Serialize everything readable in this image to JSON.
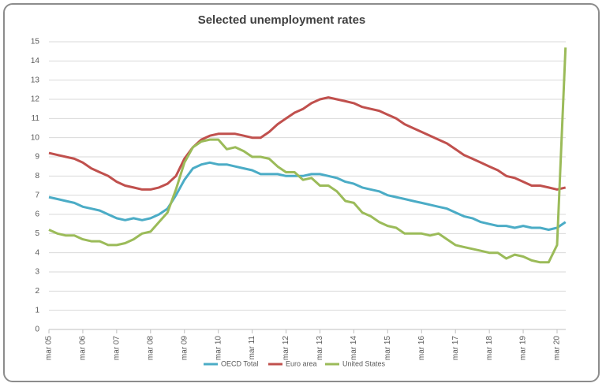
{
  "chart_data": {
    "type": "line",
    "title": "Selected unemployment rates",
    "categories": [
      "mar 05",
      null,
      null,
      null,
      "mar 06",
      null,
      null,
      null,
      "mar 07",
      null,
      null,
      null,
      "mar 08",
      null,
      null,
      null,
      "mar 09",
      null,
      null,
      null,
      "mar 10",
      null,
      null,
      null,
      "mar 11",
      null,
      null,
      null,
      "mar 12",
      null,
      null,
      null,
      "mar 13",
      null,
      null,
      null,
      "mar 14",
      null,
      null,
      null,
      "mar 15",
      null,
      null,
      null,
      "mar 16",
      null,
      null,
      null,
      "mar 17",
      null,
      null,
      null,
      "mar 18",
      null,
      null,
      null,
      "mar 19",
      null,
      null,
      null,
      "mar 20",
      null
    ],
    "series": [
      {
        "name": "OECD Total",
        "color": "#4bacc6",
        "values": [
          6.9,
          6.8,
          6.7,
          6.6,
          6.4,
          6.3,
          6.2,
          6.0,
          5.8,
          5.7,
          5.8,
          5.7,
          5.8,
          6.0,
          6.3,
          7.0,
          7.8,
          8.4,
          8.6,
          8.7,
          8.6,
          8.6,
          8.5,
          8.4,
          8.3,
          8.1,
          8.1,
          8.1,
          8.0,
          8.0,
          8.0,
          8.1,
          8.1,
          8.0,
          7.9,
          7.7,
          7.6,
          7.4,
          7.3,
          7.2,
          7.0,
          6.9,
          6.8,
          6.7,
          6.6,
          6.5,
          6.4,
          6.3,
          6.1,
          5.9,
          5.8,
          5.6,
          5.5,
          5.4,
          5.4,
          5.3,
          5.4,
          5.3,
          5.3,
          5.2,
          5.3,
          5.6
        ]
      },
      {
        "name": "Euro area",
        "color": "#c0504d",
        "values": [
          9.2,
          9.1,
          9.0,
          8.9,
          8.7,
          8.4,
          8.2,
          8.0,
          7.7,
          7.5,
          7.4,
          7.3,
          7.3,
          7.4,
          7.6,
          8.0,
          8.9,
          9.5,
          9.9,
          10.1,
          10.2,
          10.2,
          10.2,
          10.1,
          10.0,
          10.0,
          10.3,
          10.7,
          11.0,
          11.3,
          11.5,
          11.8,
          12.0,
          12.1,
          12.0,
          11.9,
          11.8,
          11.6,
          11.5,
          11.4,
          11.2,
          11.0,
          10.7,
          10.5,
          10.3,
          10.1,
          9.9,
          9.7,
          9.4,
          9.1,
          8.9,
          8.7,
          8.5,
          8.3,
          8.0,
          7.9,
          7.7,
          7.5,
          7.5,
          7.4,
          7.3,
          7.4
        ]
      },
      {
        "name": "United States",
        "color": "#9bbb59",
        "values": [
          5.2,
          5.0,
          4.9,
          4.9,
          4.7,
          4.6,
          4.6,
          4.4,
          4.4,
          4.5,
          4.7,
          5.0,
          5.1,
          5.6,
          6.1,
          7.3,
          8.7,
          9.5,
          9.8,
          9.9,
          9.9,
          9.4,
          9.5,
          9.3,
          9.0,
          9.0,
          8.9,
          8.5,
          8.2,
          8.2,
          7.8,
          7.9,
          7.5,
          7.5,
          7.2,
          6.7,
          6.6,
          6.1,
          5.9,
          5.6,
          5.4,
          5.3,
          5.0,
          5.0,
          5.0,
          4.9,
          5.0,
          4.7,
          4.4,
          4.3,
          4.2,
          4.1,
          4.0,
          4.0,
          3.7,
          3.9,
          3.8,
          3.6,
          3.5,
          3.5,
          4.4,
          14.7
        ]
      }
    ],
    "ylim": [
      0,
      15
    ],
    "yticks": [
      0,
      1,
      2,
      3,
      4,
      5,
      6,
      7,
      8,
      9,
      10,
      11,
      12,
      13,
      14,
      15
    ],
    "grid": true,
    "legend": "bottom"
  }
}
